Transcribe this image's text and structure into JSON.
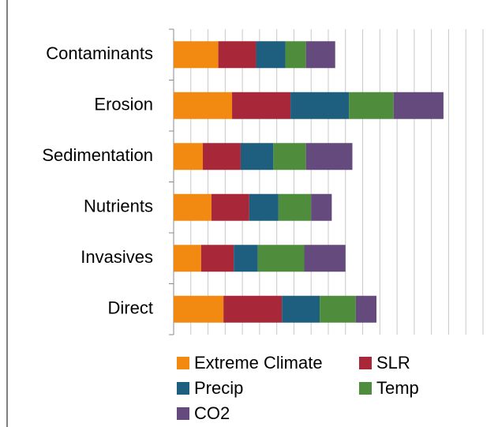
{
  "chart_data": {
    "type": "bar",
    "orientation": "horizontal",
    "stacked": true,
    "categories": [
      "Contaminants",
      "Erosion",
      "Sedimentation",
      "Nutrients",
      "Invasives",
      "Direct"
    ],
    "series": [
      {
        "name": "Extreme Climate",
        "color": "#f28a12",
        "values": [
          2.6,
          3.4,
          1.7,
          2.2,
          1.6,
          2.9
        ]
      },
      {
        "name": "SLR",
        "color": "#a8283a",
        "values": [
          2.2,
          3.4,
          2.2,
          2.2,
          1.9,
          3.4
        ]
      },
      {
        "name": "Precip",
        "color": "#1e5e7e",
        "values": [
          1.7,
          3.4,
          1.9,
          1.7,
          1.4,
          2.2
        ]
      },
      {
        "name": "Temp",
        "color": "#4f8d3d",
        "values": [
          1.2,
          2.6,
          1.9,
          1.9,
          2.7,
          2.1
        ]
      },
      {
        "name": "CO2",
        "color": "#654a7e",
        "values": [
          1.7,
          2.9,
          2.7,
          1.2,
          2.4,
          1.2
        ]
      }
    ],
    "xlim": [
      0,
      18
    ],
    "xticks": [
      0,
      1,
      2,
      3,
      4,
      5,
      6,
      7,
      8,
      9,
      10,
      11,
      12,
      13,
      14,
      15,
      16,
      17,
      18
    ],
    "grid": true
  }
}
